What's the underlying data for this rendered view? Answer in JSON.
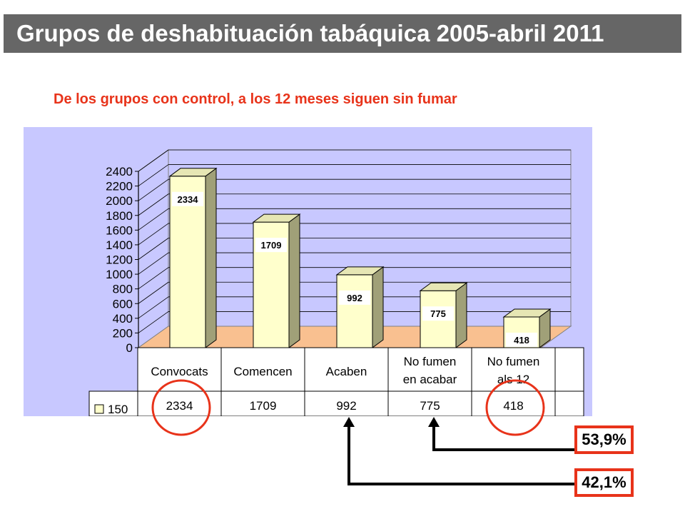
{
  "header": {
    "title": "Grupos de deshabituación tabáquica 2005-abril 2011"
  },
  "subtitle": "De los grupos con control, a los 12 meses siguen sin fumar",
  "chart_data": {
    "type": "bar",
    "categories": [
      [
        "Convocats"
      ],
      [
        "Comencen"
      ],
      [
        "Acaben"
      ],
      [
        "No fumen",
        "en acabar"
      ],
      [
        "No fumen",
        "als 12"
      ]
    ],
    "series": [
      {
        "name": "150",
        "values": [
          2334,
          1709,
          992,
          775,
          418
        ]
      }
    ],
    "data_labels": [
      "2334",
      "1709",
      "992",
      "775",
      "418"
    ],
    "yticks": [
      "0",
      "200",
      "400",
      "600",
      "800",
      "1000",
      "1200",
      "1400",
      "1600",
      "1800",
      "2000",
      "2200",
      "2400"
    ],
    "ylim": [
      0,
      2400
    ],
    "grid": true,
    "legend": "data-table",
    "colors": {
      "background": "#c8c8ff",
      "floor": "#f9c090",
      "bar_front": "#ffffcc",
      "bar_side": "#a0a078",
      "bar_top": "#e6e6b4",
      "highlight": "#e8331a"
    }
  },
  "annotations": {
    "pct_53": "53,9%",
    "pct_42": "42,1%"
  }
}
